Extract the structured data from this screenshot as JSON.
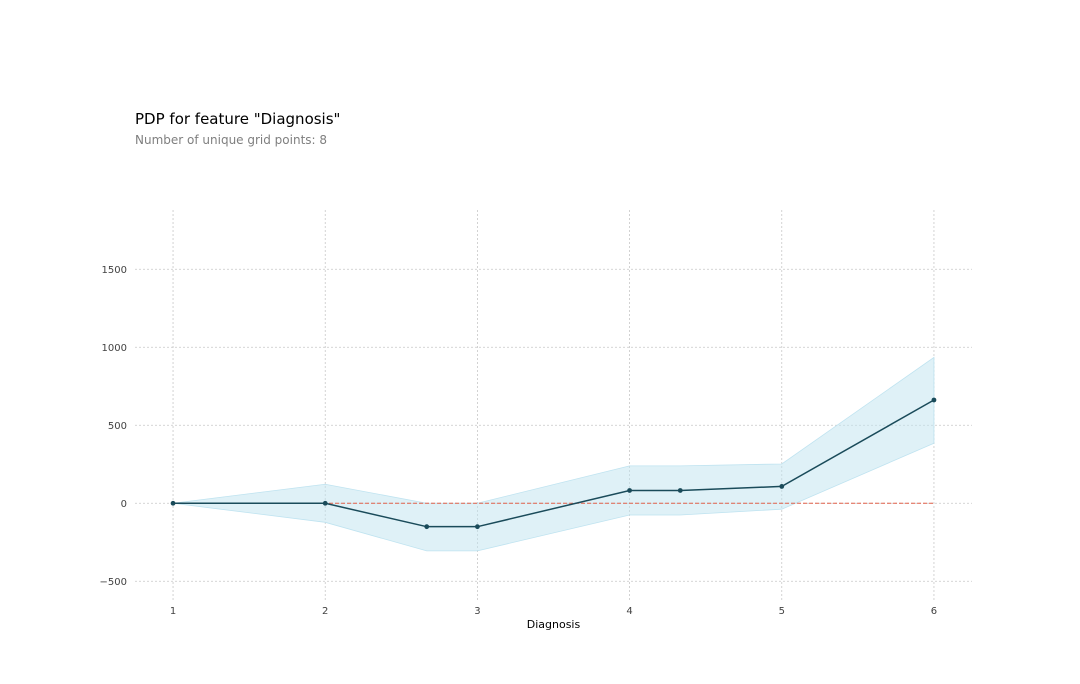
{
  "title": "PDP for feature \"Diagnosis\"",
  "subtitle": "Number of unique grid points: 8",
  "chart_data": {
    "type": "line",
    "xlabel": "Diagnosis",
    "ylabel": "",
    "xlim": [
      0.75,
      6.25
    ],
    "ylim": [
      -620,
      1880
    ],
    "x_ticks": [
      1,
      2,
      3,
      4,
      5,
      6
    ],
    "x_tick_labels": [
      "1",
      "2",
      "3",
      "4",
      "5",
      "6"
    ],
    "y_ticks": [
      -500,
      0,
      500,
      1000,
      1500
    ],
    "y_tick_labels": [
      "−500",
      "0",
      "500",
      "1000",
      "1500"
    ],
    "grid": true,
    "series": [
      {
        "x": [
          1,
          2,
          2.667,
          3,
          4,
          4.333,
          5,
          6
        ],
        "y": [
          0,
          0,
          -150,
          -150,
          82,
          82,
          108,
          662
        ],
        "upper": [
          0,
          122,
          0,
          0,
          240,
          240,
          252,
          935
        ],
        "lower": [
          0,
          -122,
          -305,
          -305,
          -75,
          -75,
          -38,
          385
        ]
      }
    ],
    "baseline": 0,
    "colors": {
      "line": "#1a4b5a",
      "marker": "#1a4b5a",
      "band": "#bfe3f0",
      "baseline": "#e0614a",
      "grid": "#c8c8c8"
    }
  }
}
